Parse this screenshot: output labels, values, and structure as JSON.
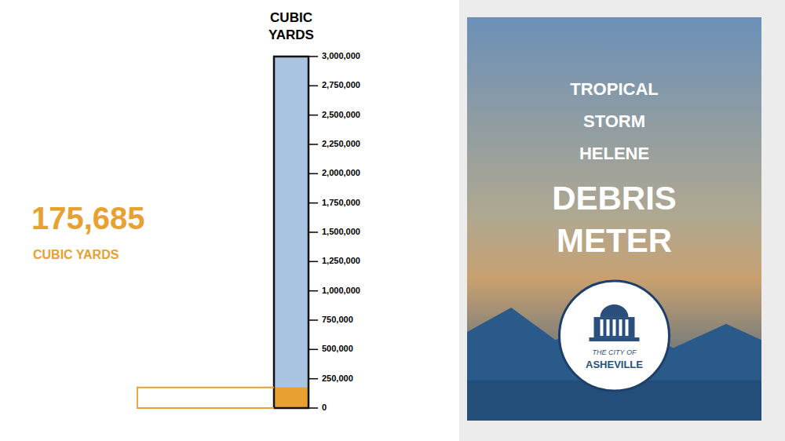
{
  "chart_data": {
    "type": "bar",
    "title": "TROPICAL STORM HELENE",
    "subtitle": "DEBRIS METER",
    "y_label": "CUBIC YARDS",
    "values": [
      175685
    ],
    "value_labels": [
      "175,685"
    ],
    "data_labels": true,
    "color": "#E8A030",
    "ylim": [
      0,
      3000000
    ],
    "yticks": [
      0,
      {
        "value": 250000,
        "label": "250,000"
      },
      {
        "value": 500000,
        "label": "500,000"
      },
      {
        "value": 750000,
        "label": "750,000"
      },
      {
        "value": 1000000,
        "label": "1,000,000"
      },
      {
        "value": 1250000,
        "label": "1,250,000"
      },
      {
        "value": 1500000,
        "label": "1,500,000"
      },
      {
        "value": 1750000,
        "label": "1,750,000"
      },
      {
        "value": 2000000,
        "label": "2,000,000"
      },
      {
        "value": 2250000,
        "label": "2,250,000"
      },
      {
        "value": 2500000,
        "label": "2,500,000"
      },
      {
        "value": 2750000,
        "label": "2,750,000"
      },
      {
        "value": 3000000,
        "label": "3,000,000"
      }
    ],
    "grid": false,
    "annotations": [
      "CUBIC YARDS",
      "THE CITY OF",
      "ASHEVILLE"
    ]
  }
}
